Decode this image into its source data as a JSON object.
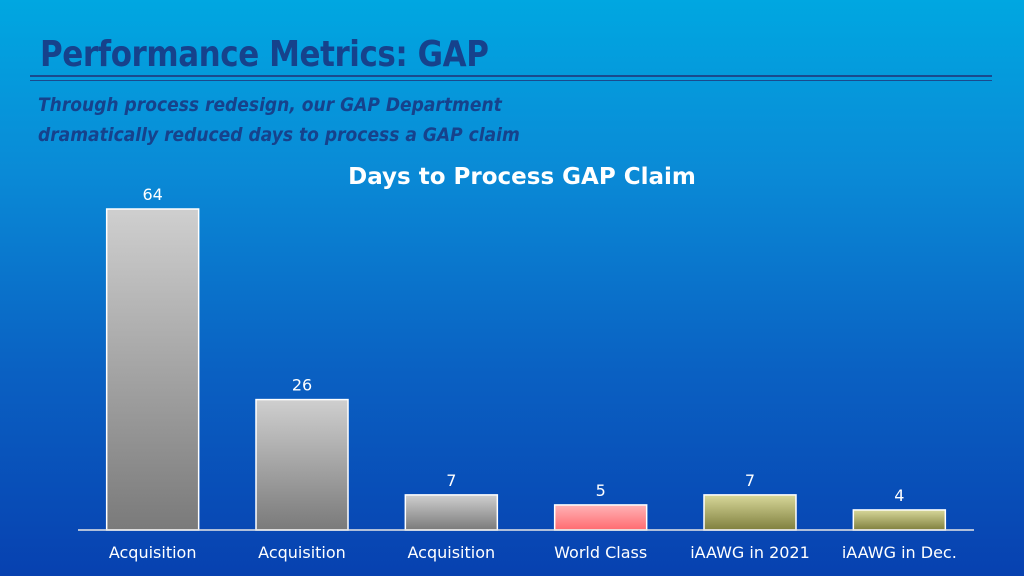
{
  "slide": {
    "title": "Performance Metrics: GAP",
    "subtitle_line1": "Through process redesign, our GAP Department",
    "subtitle_line2": "dramatically reduced days to process a GAP claim"
  },
  "chart_data": {
    "type": "bar",
    "title": "Days to Process GAP Claim",
    "xlabel": "",
    "ylabel": "",
    "categories": [
      "Acquisition",
      "Acquisition",
      "Acquisition",
      "World Class",
      "iAAWG in 2021",
      "iAAWG in Dec."
    ],
    "values": [
      64,
      26,
      7,
      5,
      7,
      4
    ],
    "ylim": [
      0,
      64
    ],
    "grid": false,
    "legend": "none",
    "bar_colors": [
      "#a6a6a6",
      "#a6a6a6",
      "#a6a6a6",
      "#ff7c80",
      "#a6a670",
      "#a6a670"
    ]
  }
}
